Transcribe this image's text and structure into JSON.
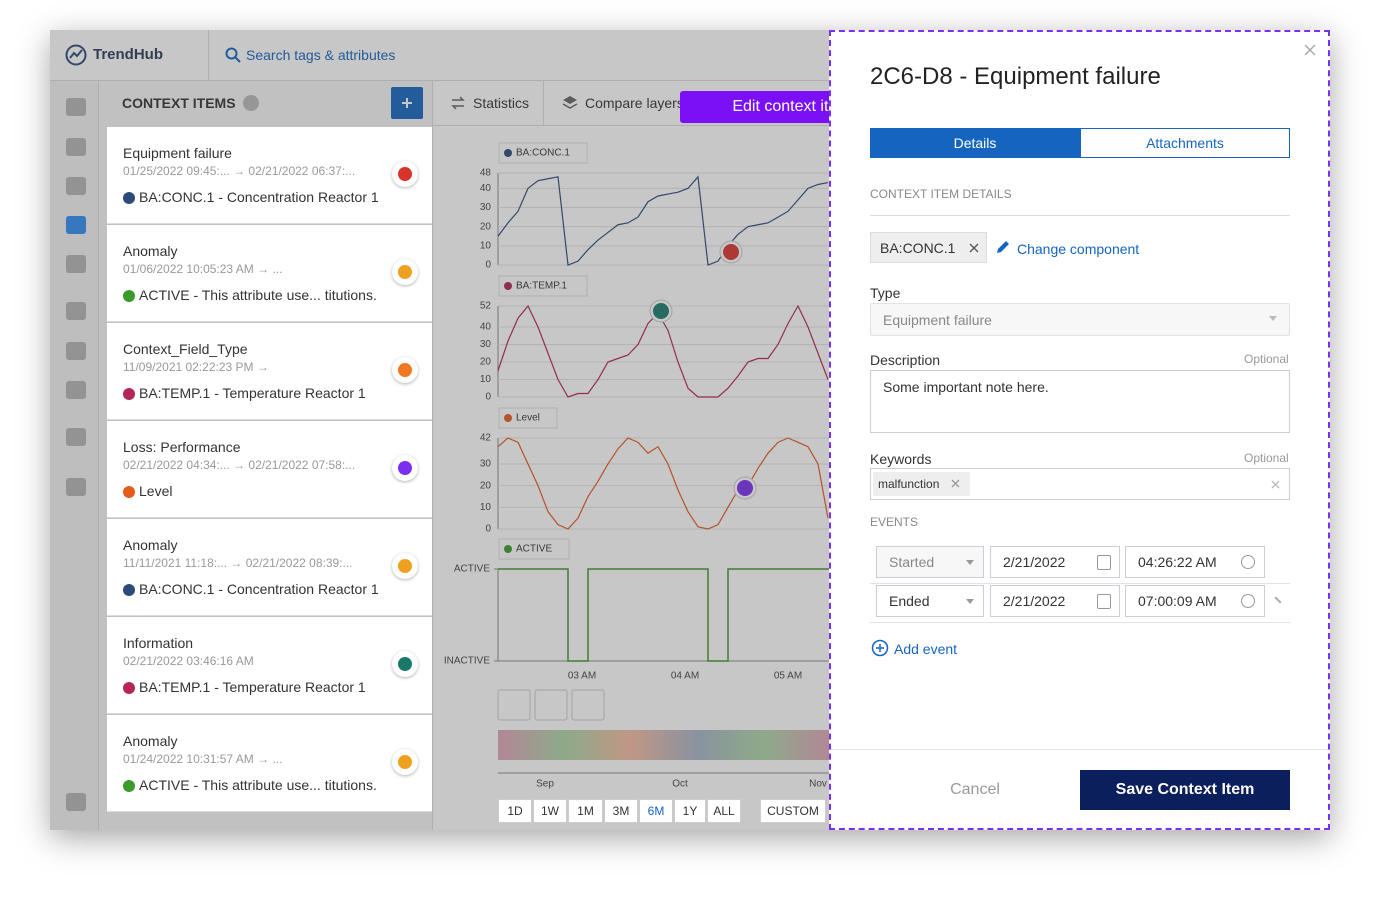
{
  "header": {
    "logo": "TrendHub",
    "search": "Search tags & attributes"
  },
  "sidebar": {
    "title": "CONTEXT ITEMS"
  },
  "items": [
    {
      "title": "Equipment failure",
      "time": "01/25/2022 09:45:... → 02/21/2022 06:37:...",
      "source": "BA:CONC.1 - Concentration Reactor 1",
      "dot_color": "#2b4a7a",
      "icon_color": "#d9342b"
    },
    {
      "title": "Anomaly",
      "time": "01/06/2022 10:05:23 AM → ...",
      "source": "ACTIVE - This attribute use... titutions.",
      "dot_color": "#3a9a2a",
      "icon_color": "#f0a020"
    },
    {
      "title": "Context_Field_Type",
      "time": "11/09/2021 02:22:23 PM →",
      "source": "BA:TEMP.1 - Temperature Reactor 1",
      "dot_color": "#b5245a",
      "icon_color": "#f07820"
    },
    {
      "title": "Loss: Performance",
      "time": "02/21/2022 04:34:... → 02/21/2022 07:58:...",
      "source": "Level",
      "dot_color": "#e65a1e",
      "icon_color": "#7b2ff0"
    },
    {
      "title": "Anomaly",
      "time": "11/11/2021 11:18:... → 02/21/2022 08:39:...",
      "source": "BA:CONC.1 - Concentration Reactor 1",
      "dot_color": "#2b4a7a",
      "icon_color": "#f0a020"
    },
    {
      "title": "Information",
      "time": "02/21/2022 03:46:16 AM",
      "source": "BA:TEMP.1 - Temperature Reactor 1",
      "dot_color": "#b5245a",
      "icon_color": "#1a7a6a"
    },
    {
      "title": "Anomaly",
      "time": "01/24/2022 10:31:57 AM → ...",
      "source": "ACTIVE - This attribute use... titutions.",
      "dot_color": "#3a9a2a",
      "icon_color": "#f0a020"
    }
  ],
  "toolbar": {
    "statistics": "Statistics",
    "compare": "Compare layers"
  },
  "tooltip": "Edit context item",
  "charts": [
    {
      "label": "BA:CONC.1",
      "color": "#2b4a7a",
      "ylim": [
        0,
        48
      ],
      "yticks": [
        0,
        10,
        20,
        30,
        40,
        48
      ],
      "values": [
        15,
        22,
        28,
        40,
        44,
        45,
        46,
        0,
        2,
        8,
        13,
        17,
        21,
        22,
        25,
        33,
        36,
        37,
        38,
        40,
        46,
        0,
        2,
        10,
        16,
        20,
        21,
        22,
        25,
        28,
        34,
        40,
        42,
        43
      ]
    },
    {
      "label": "BA:TEMP.1",
      "color": "#b5245a",
      "ylim": [
        0,
        52
      ],
      "yticks": [
        0,
        10,
        20,
        30,
        40,
        52
      ],
      "values": [
        15,
        32,
        45,
        52,
        40,
        25,
        10,
        0,
        2,
        2,
        10,
        20,
        22,
        24,
        30,
        42,
        48,
        38,
        20,
        5,
        0,
        0,
        0,
        5,
        12,
        20,
        22,
        22,
        30,
        42,
        52,
        40,
        25,
        10
      ]
    },
    {
      "label": "Level",
      "color": "#e65a1e",
      "ylim": [
        0,
        42
      ],
      "yticks": [
        0,
        10,
        20,
        30,
        42
      ],
      "values": [
        38,
        42,
        40,
        30,
        20,
        8,
        2,
        0,
        5,
        15,
        22,
        30,
        37,
        42,
        40,
        35,
        38,
        30,
        18,
        8,
        1,
        0,
        2,
        10,
        18,
        20,
        28,
        35,
        40,
        42,
        40,
        38,
        30,
        5
      ]
    }
  ],
  "state_chart": {
    "label": "ACTIVE",
    "color": "#3a9a2a",
    "ylim": [
      0,
      1
    ],
    "yticks": [
      {
        "value": 1,
        "label": "ACTIVE"
      },
      {
        "value": 0,
        "label": "INACTIVE"
      }
    ],
    "values": [
      1,
      1,
      1,
      1,
      1,
      1,
      1,
      0,
      0,
      1,
      1,
      1,
      1,
      1,
      1,
      1,
      1,
      1,
      1,
      1,
      1,
      0,
      0,
      1,
      1,
      1,
      1,
      1,
      1,
      1,
      1,
      1,
      1,
      1
    ]
  },
  "time_ticks": [
    "03 AM",
    "04 AM",
    "05 AM"
  ],
  "navigator_ticks": [
    "Sep",
    "Oct",
    "Nov"
  ],
  "ranges": [
    {
      "label": "1D",
      "selected": false
    },
    {
      "label": "1W",
      "selected": false
    },
    {
      "label": "1M",
      "selected": false
    },
    {
      "label": "3M",
      "selected": false
    },
    {
      "label": "6M",
      "selected": true
    },
    {
      "label": "1Y",
      "selected": false
    },
    {
      "label": "ALL",
      "selected": false
    }
  ],
  "custom": "CUSTOM",
  "modal": {
    "title": "2C6-D8 - Equipment failure",
    "tabs": [
      "Details",
      "Attachments"
    ],
    "section": "CONTEXT ITEM DETAILS",
    "component": "BA:CONC.1",
    "change": "Change component",
    "type_label": "Type",
    "type_value": "Equipment failure",
    "description_label": "Description",
    "optional": "Optional",
    "description": "Some important note here.",
    "keywords_label": "Keywords",
    "keyword": "malfunction",
    "events_label": "EVENTS",
    "events": [
      {
        "kind": "Started",
        "date": "2/21/2022",
        "time": "04:26:22 AM"
      },
      {
        "kind": "Ended",
        "date": "2/21/2022",
        "time": "07:00:09 AM"
      }
    ],
    "add_event": "Add event",
    "cancel": "Cancel",
    "save": "Save Context Item"
  }
}
